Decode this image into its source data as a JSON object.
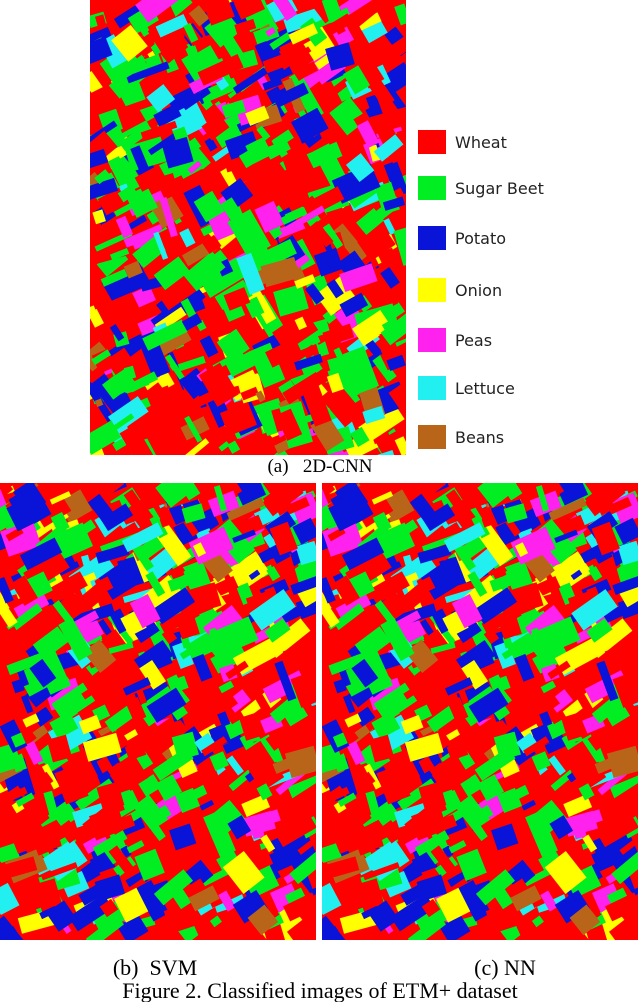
{
  "figure": {
    "panels": [
      {
        "label": "(a)   2D-CNN"
      },
      {
        "label": "(b)  SVM"
      },
      {
        "label": "(c) NN"
      }
    ],
    "legend": [
      {
        "name": "Wheat",
        "color": "#ff0000"
      },
      {
        "name": "Sugar Beet",
        "color": "#00ee22"
      },
      {
        "name": "Potato",
        "color": "#0a14d8"
      },
      {
        "name": "Onion",
        "color": "#ffff00"
      },
      {
        "name": "Peas",
        "color": "#ff22ee"
      },
      {
        "name": "Lettuce",
        "color": "#22f0f0"
      },
      {
        "name": "Beans",
        "color": "#b8651a"
      }
    ],
    "caption": "Figure 2. Classified images of ETM+ dataset"
  }
}
